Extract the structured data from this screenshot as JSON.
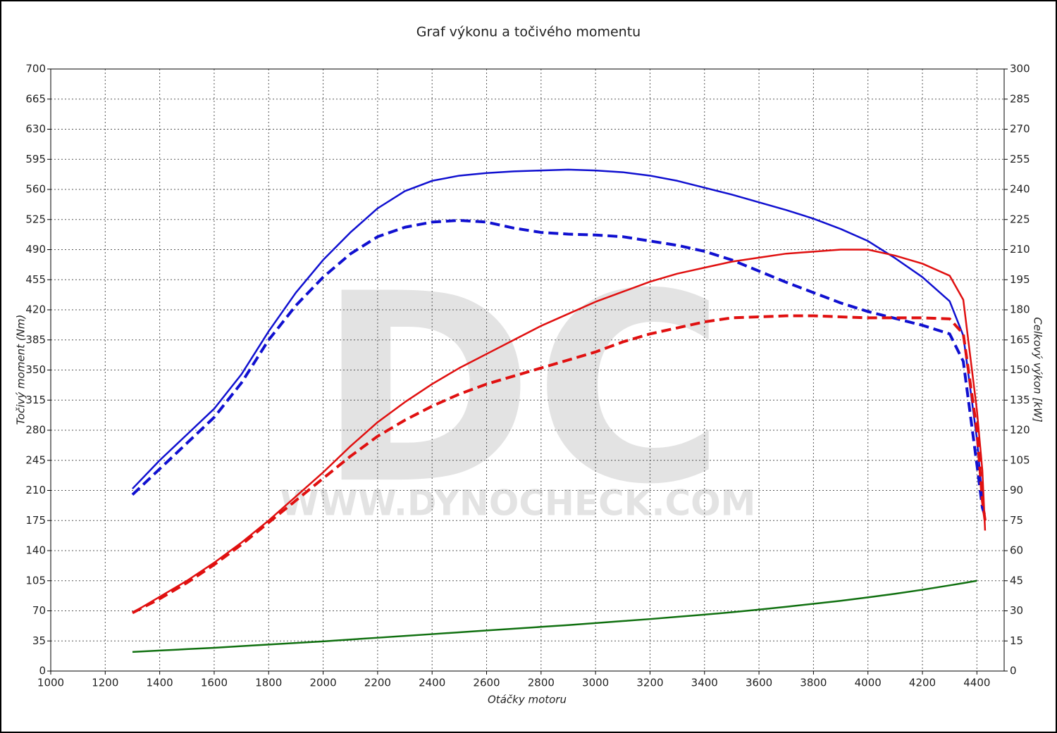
{
  "chart_data": {
    "type": "line",
    "title": "Graf výkonu a točivého momentu",
    "xlabel": "Otáčky motoru",
    "ylabel": "Točivý moment (Nm)",
    "y2label": "Celkový výkon [kW]",
    "watermark": "DC",
    "watermark_url": "WWW.DYNOCHECK.COM",
    "grid": true,
    "xlim": [
      1000,
      4500
    ],
    "xticks": [
      1000,
      1200,
      1400,
      1600,
      1800,
      2000,
      2200,
      2400,
      2600,
      2800,
      3000,
      3200,
      3400,
      3600,
      3800,
      4000,
      4200,
      4400
    ],
    "ylim": [
      0,
      700
    ],
    "yticks": [
      0,
      35,
      70,
      105,
      140,
      175,
      210,
      245,
      280,
      315,
      350,
      385,
      420,
      455,
      490,
      525,
      560,
      595,
      630,
      665,
      700
    ],
    "y2lim": [
      0,
      300
    ],
    "y2ticks": [
      0,
      15,
      30,
      45,
      60,
      75,
      90,
      105,
      120,
      135,
      150,
      165,
      180,
      195,
      210,
      225,
      240,
      255,
      270,
      285,
      300
    ],
    "x": [
      1300,
      1400,
      1500,
      1600,
      1700,
      1800,
      1900,
      2000,
      2100,
      2200,
      2300,
      2400,
      2500,
      2600,
      2700,
      2800,
      2900,
      3000,
      3100,
      3200,
      3300,
      3400,
      3500,
      3600,
      3700,
      3800,
      3900,
      4000,
      4100,
      4200,
      4300,
      4350,
      4400,
      4420,
      4430
    ],
    "series": [
      {
        "color": "#1010d0",
        "dash": false,
        "axis": "y",
        "values": [
          212,
          245,
          275,
          305,
          345,
          395,
          440,
          478,
          510,
          538,
          558,
          570,
          576,
          579,
          581,
          582,
          583,
          582,
          580,
          576,
          570,
          562,
          554,
          545,
          536,
          526,
          514,
          500,
          480,
          458,
          430,
          390,
          270,
          200,
          175
        ]
      },
      {
        "color": "#1010d0",
        "dash": true,
        "axis": "y",
        "values": [
          205,
          235,
          265,
          295,
          335,
          385,
          425,
          458,
          485,
          505,
          516,
          522,
          524,
          522,
          515,
          510,
          508,
          507,
          505,
          500,
          495,
          488,
          478,
          465,
          452,
          440,
          428,
          418,
          410,
          402,
          392,
          360,
          240,
          190,
          180
        ]
      },
      {
        "color": "#e01010",
        "dash": false,
        "axis": "y2",
        "values": [
          29,
          37,
          45,
          54,
          64,
          75,
          87,
          99,
          112,
          124,
          134,
          143,
          151,
          158,
          165,
          172,
          178,
          184,
          189,
          194,
          198,
          201,
          204,
          206,
          208,
          209,
          210,
          210,
          207,
          203,
          197,
          185,
          130,
          100,
          70
        ]
      },
      {
        "color": "#e01010",
        "dash": true,
        "axis": "y2",
        "values": [
          29,
          36,
          44,
          53,
          63,
          74,
          85,
          96,
          107,
          117,
          125,
          132,
          138,
          143,
          147,
          151,
          155,
          159,
          164,
          168,
          171,
          174,
          176,
          176.5,
          177,
          177,
          176.5,
          176,
          176,
          176,
          175.5,
          168,
          120,
          85,
          75
        ]
      },
      {
        "color": "#107010",
        "dash": false,
        "axis": "y2",
        "values": [
          9.5,
          10.2,
          10.9,
          11.6,
          12.4,
          13.2,
          14,
          14.8,
          15.7,
          16.6,
          17.5,
          18.4,
          19.3,
          20.2,
          21.1,
          22,
          22.9,
          23.9,
          24.9,
          25.9,
          27,
          28.1,
          29.3,
          30.6,
          32,
          33.5,
          35,
          36.7,
          38.5,
          40.5,
          42.7,
          43.8,
          45,
          null,
          null
        ]
      }
    ]
  }
}
